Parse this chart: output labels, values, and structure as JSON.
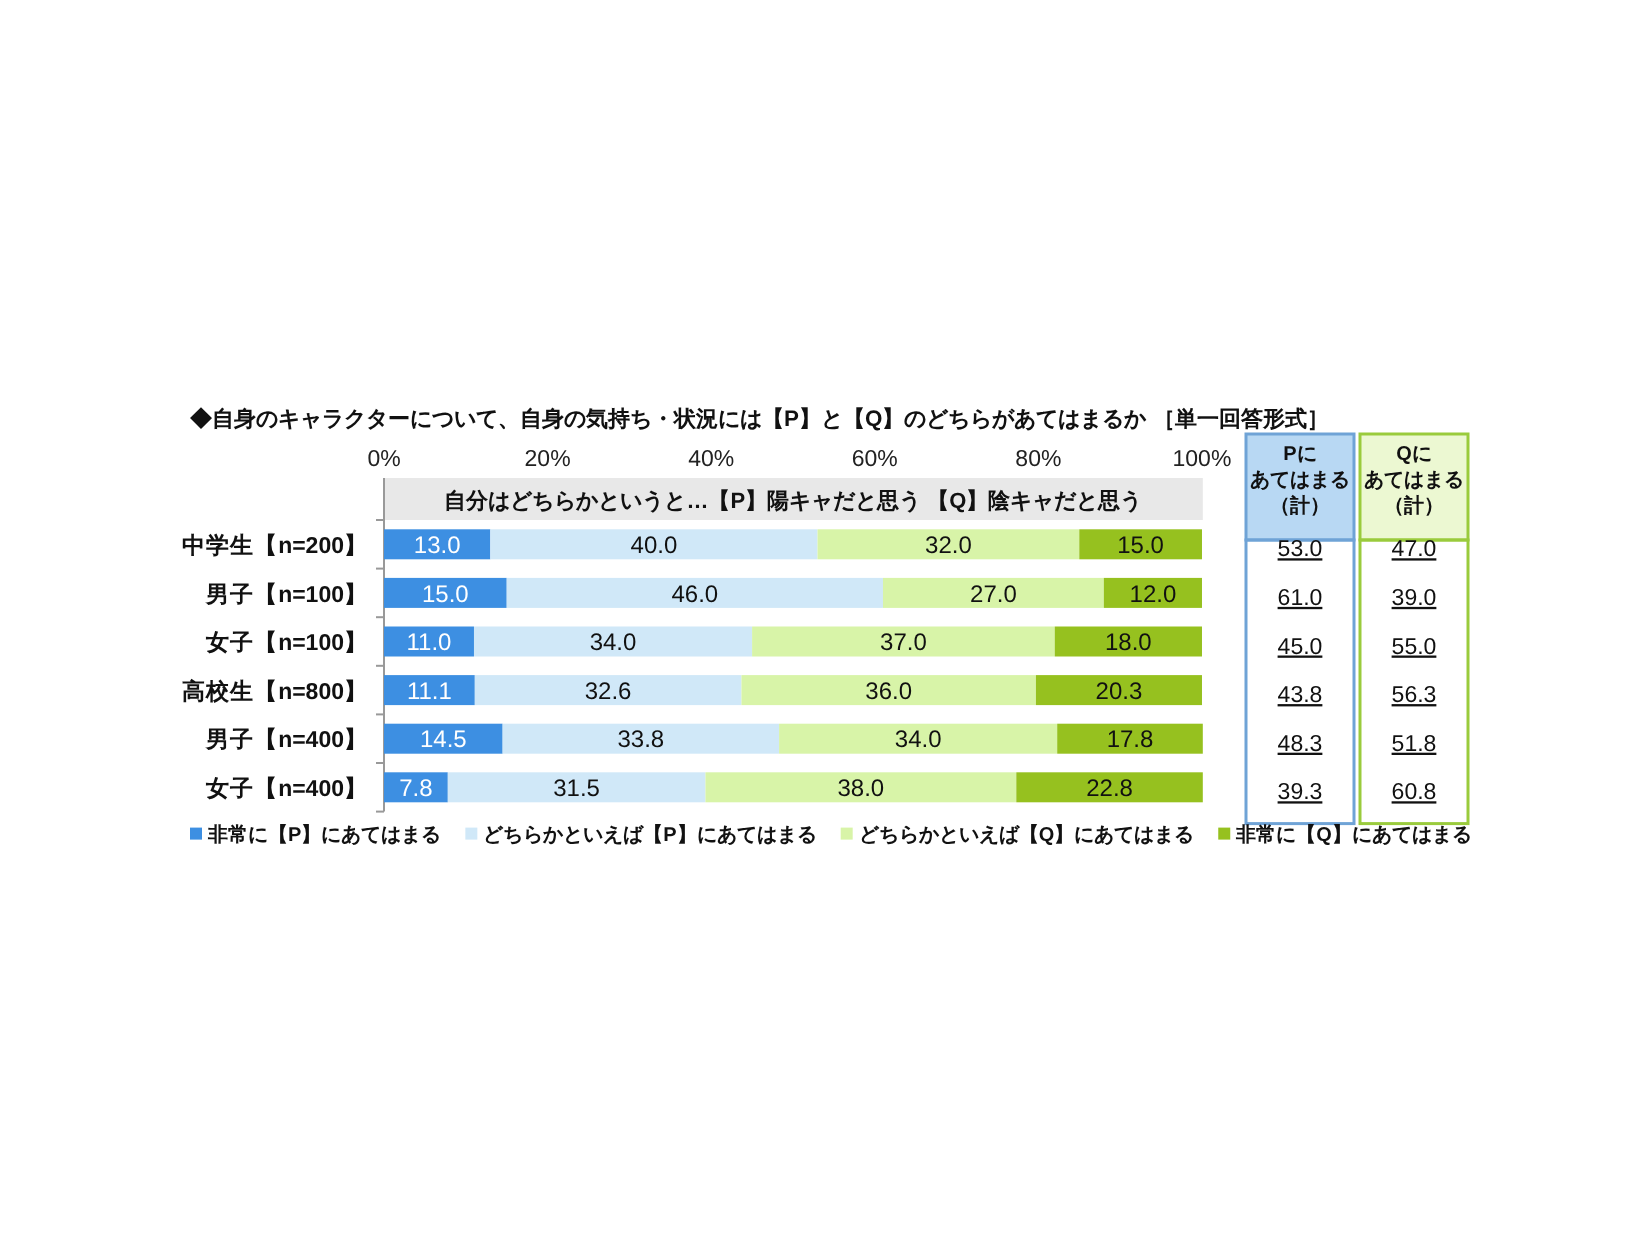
{
  "chart_data": {
    "type": "bar",
    "orientation": "horizontal",
    "stacked": true,
    "title": "◆自身のキャラクターについて、自身の気持ち・状況には【P】と【Q】のどちらがあてはまるか ［単一回答形式］",
    "subtitle": "自分はどちらかというと…【P】陽キャだと思う 【Q】陰キャだと思う",
    "categories": [
      "中学生【n=200】",
      "男子【n=100】",
      "女子【n=100】",
      "高校生【n=800】",
      "男子【n=400】",
      "女子【n=400】"
    ],
    "series": [
      {
        "name": "非常に【P】にあてはまる",
        "color": "#3d8fe2",
        "values": [
          13.0,
          15.0,
          11.0,
          11.1,
          14.5,
          7.8
        ],
        "value_labels": [
          "13.0",
          "15.0",
          "11.0",
          "11.1",
          "14.5",
          "7.8"
        ]
      },
      {
        "name": "どちらかといえば【P】にあてはまる",
        "color": "#d0e8f8",
        "values": [
          40.0,
          46.0,
          34.0,
          32.6,
          33.8,
          31.5
        ],
        "value_labels": [
          "40.0",
          "46.0",
          "34.0",
          "32.6",
          "33.8",
          "31.5"
        ]
      },
      {
        "name": "どちらかといえば【Q】にあてはまる",
        "color": "#d8f4a8",
        "values": [
          32.0,
          27.0,
          37.0,
          36.0,
          34.0,
          38.0
        ],
        "value_labels": [
          "32.0",
          "27.0",
          "37.0",
          "36.0",
          "34.0",
          "38.0"
        ]
      },
      {
        "name": "非常に【Q】にあてはまる",
        "color": "#96c11f",
        "values": [
          15.0,
          12.0,
          18.0,
          20.3,
          17.8,
          22.8
        ],
        "value_labels": [
          "15.0",
          "12.0",
          "18.0",
          "20.3",
          "17.8",
          "22.8"
        ]
      }
    ],
    "xlim": [
      0,
      100.1
    ],
    "xticks": [
      {
        "value": 0,
        "label": "0%"
      },
      {
        "value": 20,
        "label": "20%"
      },
      {
        "value": 40,
        "label": "40%"
      },
      {
        "value": 60,
        "label": "60%"
      },
      {
        "value": 80,
        "label": "80%"
      },
      {
        "value": 100,
        "label": "100%"
      }
    ],
    "legend": "bottom",
    "annotations": [
      "Pにあてはまる（計）",
      "53.0",
      "61.0",
      "45.0",
      "43.8",
      "48.3",
      "39.3",
      "Qにあてはまる（計）",
      "47.0",
      "39.0",
      "55.0",
      "56.3",
      "51.8",
      "60.8"
    ]
  }
}
